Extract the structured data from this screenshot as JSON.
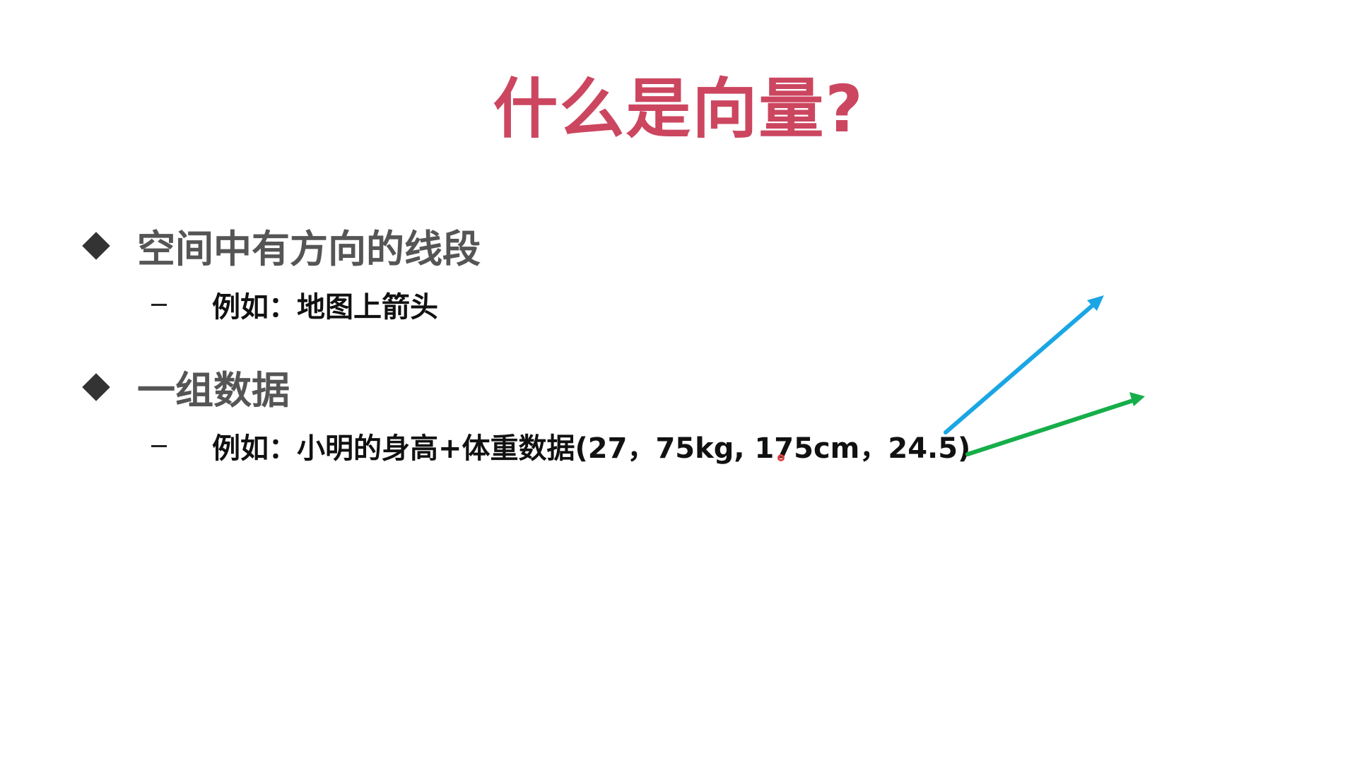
{
  "slide": {
    "title": "什么是向量?",
    "bullets": [
      {
        "text": "空间中有方向的线段",
        "sub": "例如：地图上箭头"
      },
      {
        "text": "一组数据",
        "sub": "例如：小明的身高+体重数据(27，75kg, 175cm，24.5)"
      }
    ],
    "colors": {
      "title": "#cc4660",
      "arrow_blue": "#1aa6e4",
      "arrow_green": "#16ae4a"
    }
  }
}
